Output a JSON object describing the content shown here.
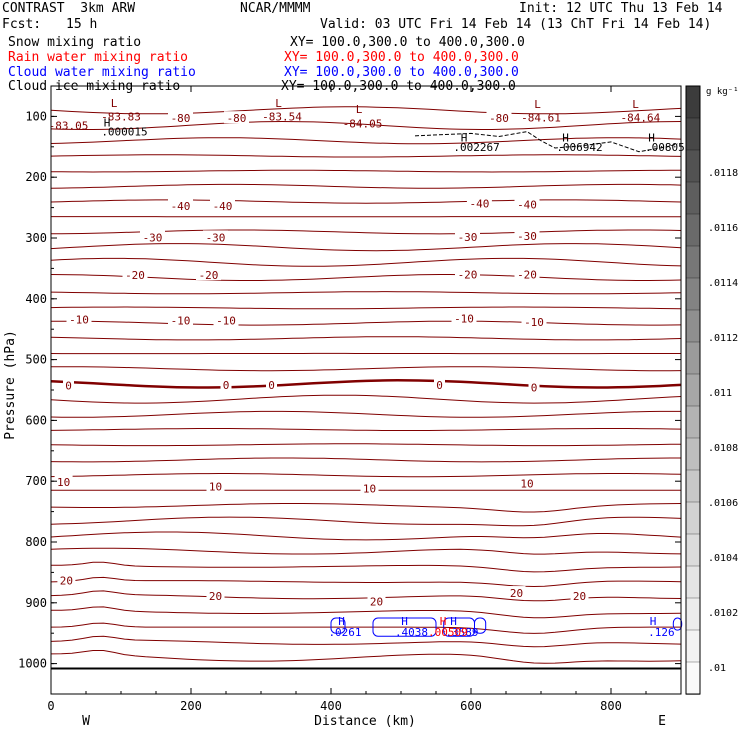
{
  "header": {
    "title": "CONTRAST  3km ARW",
    "org": "NCAR/MMMM",
    "init": "Init: 12 UTC Thu 13 Feb 14",
    "fcst_label": "Fcst:",
    "fcst_value": "15 h",
    "valid": "Valid: 03 UTC Fri 14 Feb 14 (13 ChT Fri 14 Feb 14)",
    "fields": [
      {
        "name": "Snow mixing ratio",
        "xy": "XY= 100.0,300.0 to 400.0,300.0",
        "color": "#000000"
      },
      {
        "name": "Rain water mixing ratio",
        "xy": "XY= 100.0,300.0 to 400.0,300.0",
        "color": "#ff0000"
      },
      {
        "name": "Cloud water mixing ratio",
        "xy": "XY= 100.0,300.0 to 400.0,300.0",
        "color": "#0000ff"
      },
      {
        "name": "Cloud ice mixing ratio",
        "xy": "XY= 100.0,300.0 to 400.0,300.0",
        "color": "#000000"
      }
    ]
  },
  "chart_data": {
    "type": "contour-cross-section",
    "xlabel": "Distance (km)",
    "ylabel": "Pressure (hPa)",
    "xlim": [
      0,
      900
    ],
    "ylim": [
      1050,
      50
    ],
    "x_ticks": [
      "0",
      "200",
      "400",
      "600",
      "800"
    ],
    "x_tick_values": [
      0,
      200,
      400,
      600,
      800
    ],
    "y_ticks": [
      "100",
      "200",
      "300",
      "400",
      "500",
      "600",
      "700",
      "800",
      "900",
      "1000"
    ],
    "y_tick_values": [
      100,
      200,
      300,
      400,
      500,
      600,
      700,
      800,
      900,
      1000
    ],
    "west_label": "W",
    "east_label": "E",
    "colorbar": {
      "unit": "g kg⁻¹",
      "labels": [
        ".0118",
        ".0116",
        ".0114",
        ".0112",
        ".011",
        ".0108",
        ".0106",
        ".0104",
        ".0102",
        ".01"
      ],
      "shades": [
        "#3c3c3c",
        "#474747",
        "#525252",
        "#5e5e5e",
        "#6a6a6a",
        "#777777",
        "#838383",
        "#8f8f8f",
        "#9b9b9b",
        "#a7a7a7",
        "#b3b3b3",
        "#bebebe",
        "#c8c8c8",
        "#d2d2d2",
        "#dbdbdb",
        "#e4e4e4",
        "#ececec",
        "#f3f3f3",
        "#fafafa"
      ]
    },
    "temperature_contours": {
      "color": "#800000",
      "labels": [
        {
          "text": "-80",
          "x": 185,
          "p": 103
        },
        {
          "text": "-80",
          "x": 265,
          "p": 103
        },
        {
          "text": "-80",
          "x": 640,
          "p": 103
        },
        {
          "text": "-40",
          "x": 185,
          "p": 247
        },
        {
          "text": "-40",
          "x": 245,
          "p": 247
        },
        {
          "text": "-40",
          "x": 612,
          "p": 243
        },
        {
          "text": "-40",
          "x": 680,
          "p": 245
        },
        {
          "text": "-30",
          "x": 145,
          "p": 299
        },
        {
          "text": "-30",
          "x": 235,
          "p": 299
        },
        {
          "text": "-30",
          "x": 595,
          "p": 298
        },
        {
          "text": "-30",
          "x": 680,
          "p": 297
        },
        {
          "text": "-20",
          "x": 120,
          "p": 361
        },
        {
          "text": "-20",
          "x": 225,
          "p": 361
        },
        {
          "text": "-20",
          "x": 595,
          "p": 360
        },
        {
          "text": "-20",
          "x": 680,
          "p": 360
        },
        {
          "text": "-10",
          "x": 40,
          "p": 434
        },
        {
          "text": "-10",
          "x": 185,
          "p": 436
        },
        {
          "text": "-10",
          "x": 250,
          "p": 436
        },
        {
          "text": "-10",
          "x": 590,
          "p": 432
        },
        {
          "text": "-10",
          "x": 690,
          "p": 438
        },
        {
          "text": "0",
          "x": 25,
          "p": 543
        },
        {
          "text": "0",
          "x": 250,
          "p": 542
        },
        {
          "text": "0",
          "x": 315,
          "p": 542
        },
        {
          "text": "0",
          "x": 555,
          "p": 542
        },
        {
          "text": "0",
          "x": 690,
          "p": 546
        },
        {
          "text": "10",
          "x": 18,
          "p": 701
        },
        {
          "text": "10",
          "x": 235,
          "p": 709
        },
        {
          "text": "10",
          "x": 455,
          "p": 712
        },
        {
          "text": "10",
          "x": 680,
          "p": 704
        },
        {
          "text": "20",
          "x": 22,
          "p": 863
        },
        {
          "text": "20",
          "x": 235,
          "p": 889
        },
        {
          "text": "20",
          "x": 465,
          "p": 898
        },
        {
          "text": "20",
          "x": 665,
          "p": 884
        },
        {
          "text": "20",
          "x": 755,
          "p": 889
        }
      ]
    },
    "extrema_labels": [
      {
        "text": "L",
        "x": 90,
        "p": 78,
        "color": "#800000"
      },
      {
        "text": "-83.83",
        "x": 100,
        "p": 100,
        "color": "#800000"
      },
      {
        "text": "-83.05",
        "x": 25,
        "p": 115,
        "color": "#800000"
      },
      {
        "text": "L",
        "x": 325,
        "p": 78,
        "color": "#800000"
      },
      {
        "text": "-83.54",
        "x": 330,
        "p": 100,
        "color": "#800000"
      },
      {
        "text": "L",
        "x": 440,
        "p": 88,
        "color": "#800000"
      },
      {
        "text": "-84.05",
        "x": 445,
        "p": 112,
        "color": "#800000"
      },
      {
        "text": "L",
        "x": 695,
        "p": 80,
        "color": "#800000"
      },
      {
        "text": "-84.61",
        "x": 700,
        "p": 102,
        "color": "#800000"
      },
      {
        "text": "L",
        "x": 835,
        "p": 80,
        "color": "#800000"
      },
      {
        "text": "-84.64",
        "x": 842,
        "p": 102,
        "color": "#800000"
      },
      {
        "text": "H",
        "x": 80,
        "p": 110,
        "color": "#000000"
      },
      {
        "text": ".000015",
        "x": 105,
        "p": 125,
        "color": "#000000"
      },
      {
        "text": "H",
        "x": 590,
        "p": 135,
        "color": "#000000"
      },
      {
        "text": ".002267",
        "x": 608,
        "p": 150,
        "color": "#000000"
      },
      {
        "text": "H",
        "x": 735,
        "p": 135,
        "color": "#000000"
      },
      {
        "text": ".006942",
        "x": 755,
        "p": 150,
        "color": "#000000"
      },
      {
        "text": "H",
        "x": 858,
        "p": 135,
        "color": "#000000"
      },
      {
        "text": ".00805",
        "x": 877,
        "p": 150,
        "color": "#000000"
      },
      {
        "text": "H",
        "x": 415,
        "p": 930,
        "color": "#0000ff"
      },
      {
        "text": ".0261",
        "x": 420,
        "p": 948,
        "color": "#0000ff"
      },
      {
        "text": "H",
        "x": 505,
        "p": 930,
        "color": "#0000ff"
      },
      {
        "text": ".4038",
        "x": 515,
        "p": 948,
        "color": "#0000ff"
      },
      {
        "text": "H",
        "x": 560,
        "p": 930,
        "color": "#ff0000"
      },
      {
        "text": "H",
        "x": 575,
        "p": 930,
        "color": "#0000ff"
      },
      {
        "text": ".3589",
        "x": 587,
        "p": 948,
        "color": "#0000ff"
      },
      {
        "text": ".00509",
        "x": 567,
        "p": 948,
        "color": "#ff0000"
      },
      {
        "text": "H",
        "x": 860,
        "p": 930,
        "color": "#0000ff"
      },
      {
        "text": ".126",
        "x": 872,
        "p": 948,
        "color": "#0000ff"
      }
    ],
    "surface_pressure": 1008
  }
}
